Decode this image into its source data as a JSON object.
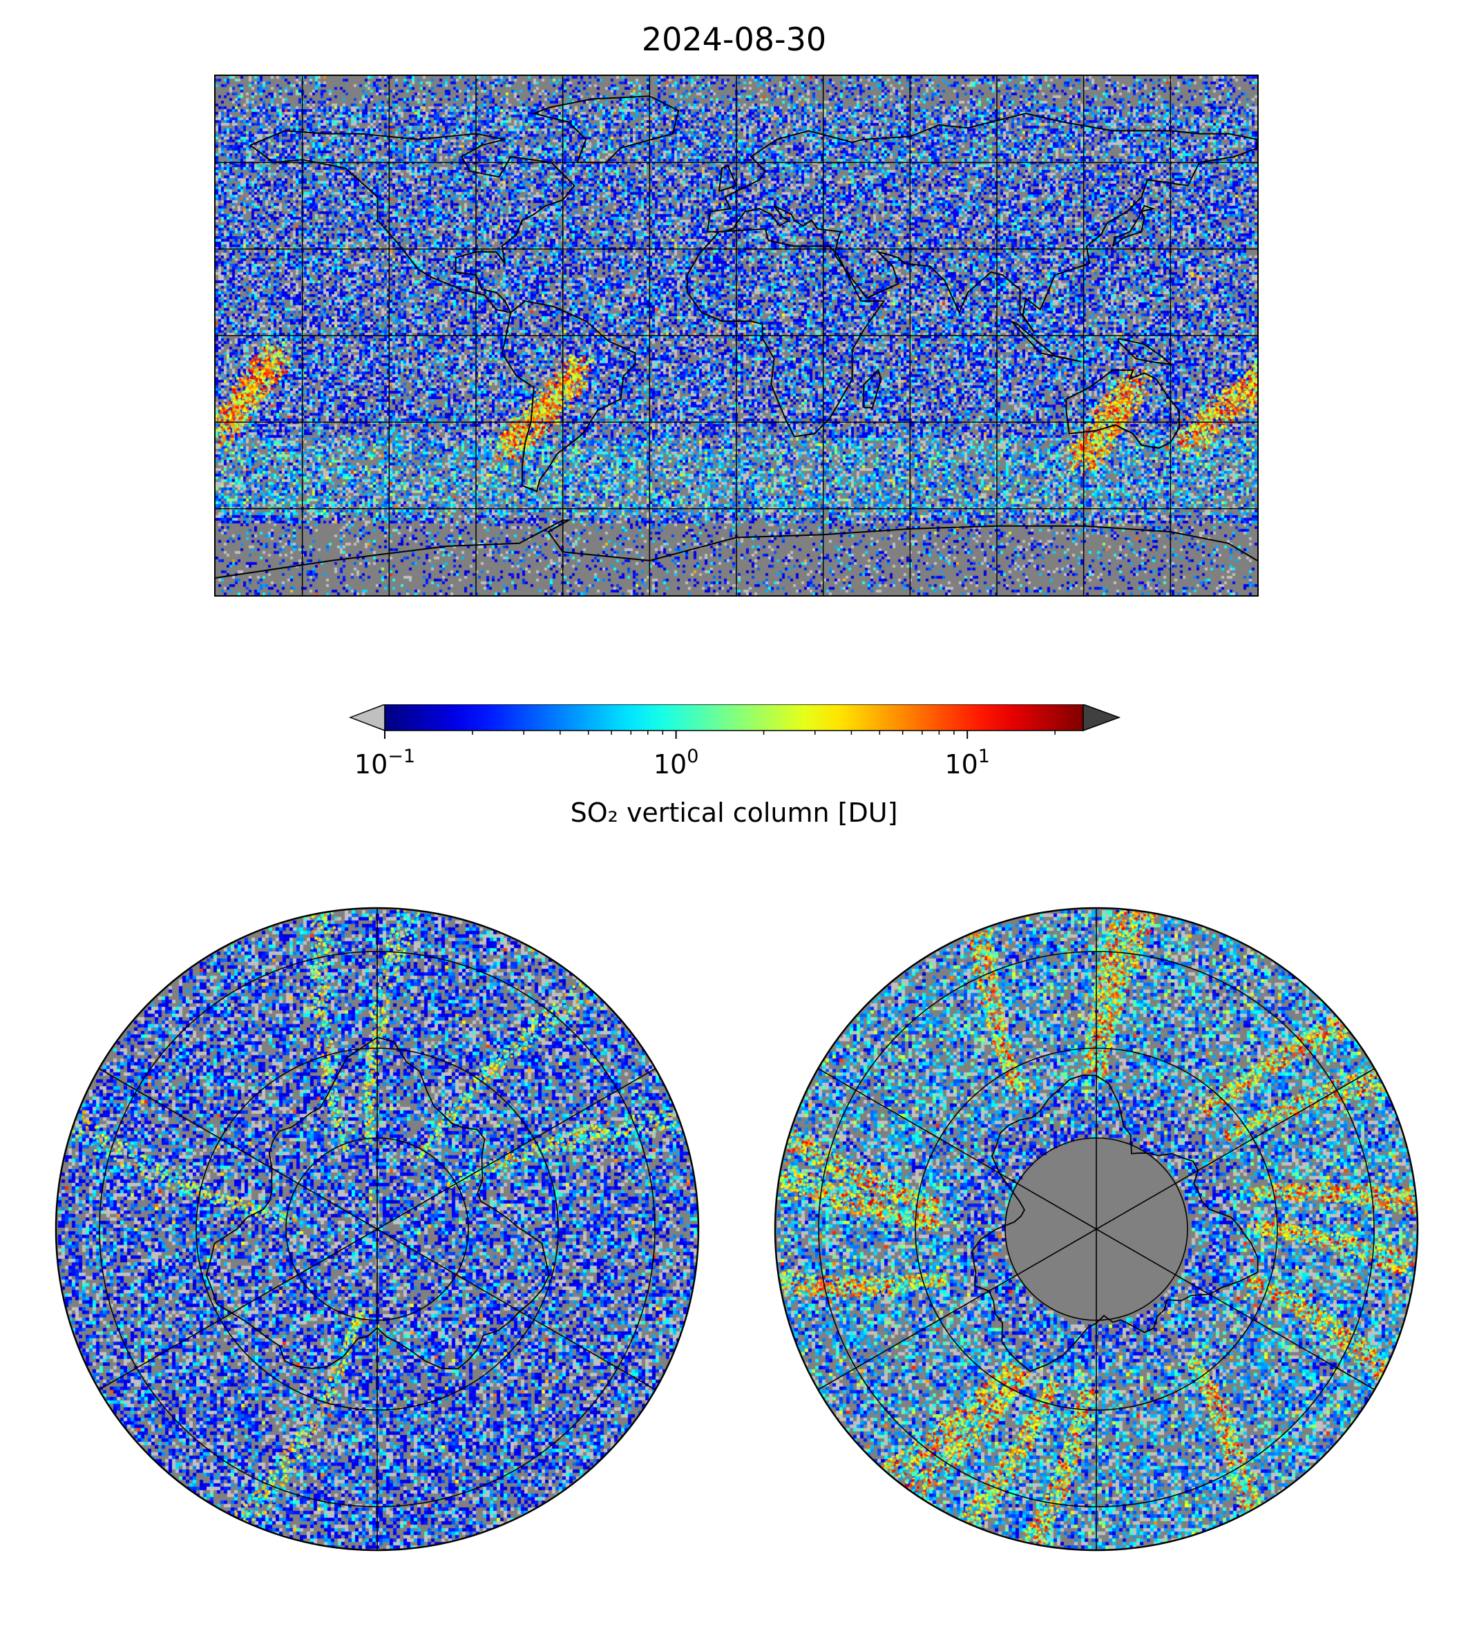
{
  "title": "2024-08-30",
  "world_map": {
    "projection": "equirectangular",
    "background": "#808080",
    "gridlines": "on"
  },
  "colorbar": {
    "label": "SO₂ vertical column [DU]",
    "scale": "log",
    "range": [
      0.1,
      25
    ],
    "extend": "both",
    "colormap": "jet",
    "under_color": "#c0c0c0",
    "over_color": "#404040",
    "ticks": [
      {
        "value": 0.1,
        "base": "10",
        "exp": "−1"
      },
      {
        "value": 1,
        "base": "10",
        "exp": "0"
      },
      {
        "value": 10,
        "base": "10",
        "exp": "1"
      }
    ]
  },
  "north_polar": {
    "projection": "north-polar-stereographic",
    "background": "#808080"
  },
  "south_polar": {
    "projection": "south-polar-stereographic",
    "background": "#808080"
  }
}
